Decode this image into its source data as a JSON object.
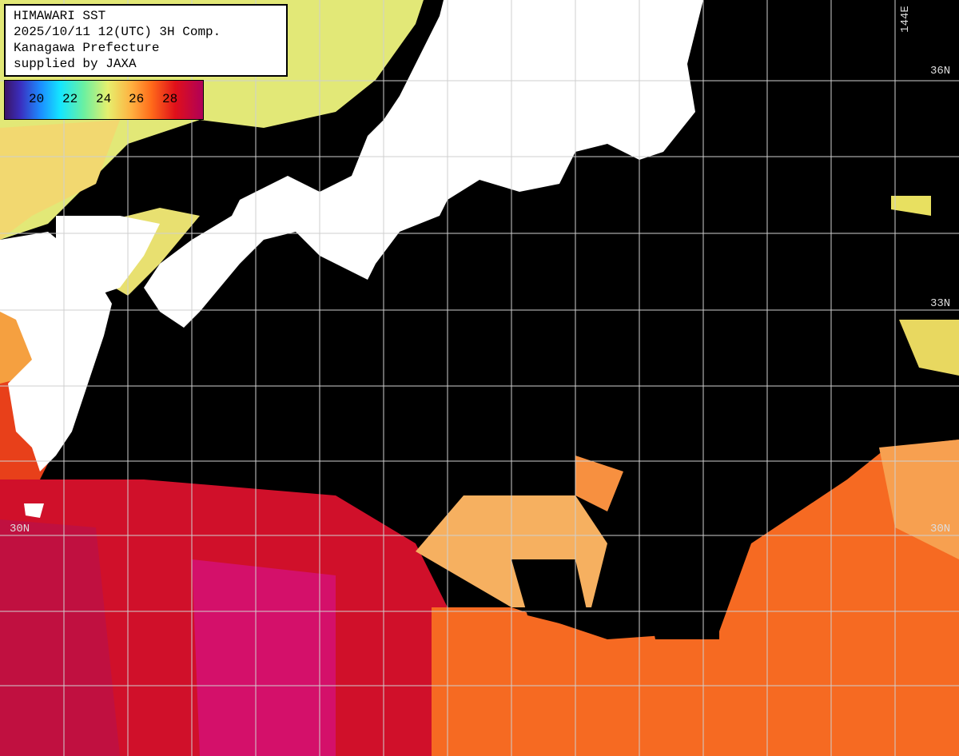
{
  "info": {
    "lines": [
      "HIMAWARI SST",
      "2025/10/11 12(UTC) 3H Comp.",
      "Kanagawa Prefecture",
      "supplied by JAXA"
    ]
  },
  "colorbar": {
    "labels": [
      20,
      22,
      24,
      26,
      28
    ]
  },
  "grid_labels": {
    "lon": "144E",
    "lat_36": "36N",
    "lat_33": "33N",
    "lat_30_left": "30N",
    "lat_30_right": "30N"
  }
}
